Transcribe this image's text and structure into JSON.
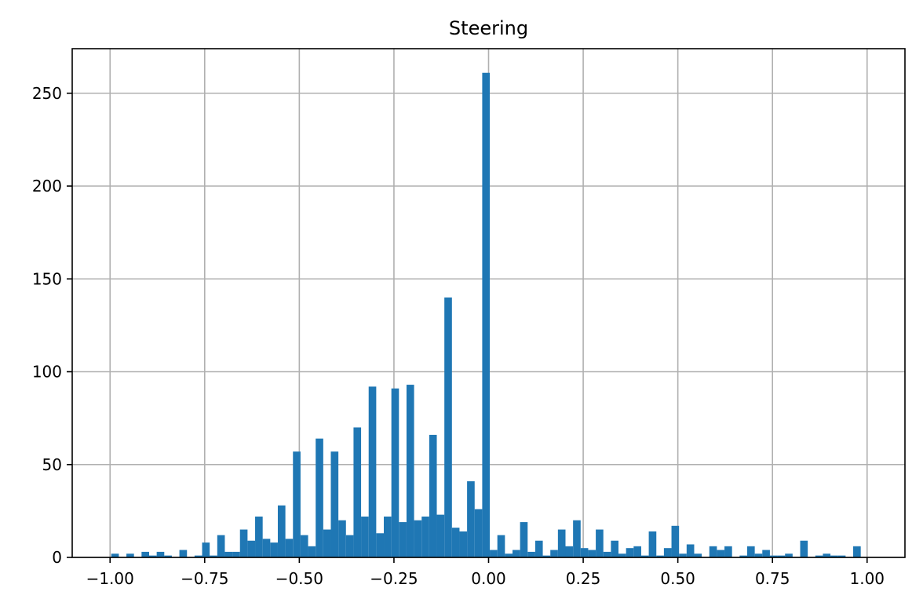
{
  "chart_data": {
    "type": "bar",
    "title": "Steering",
    "xlabel": "",
    "ylabel": "",
    "xlim": [
      -1.1,
      1.1
    ],
    "ylim": [
      0,
      274
    ],
    "grid": true,
    "bar_color": "#1f77b4",
    "grid_color": "#b0b0b0",
    "x_ticks": [
      -1.0,
      -0.75,
      -0.5,
      -0.25,
      0.0,
      0.25,
      0.5,
      0.75,
      1.0
    ],
    "x_tick_labels": [
      "−1.00",
      "−0.75",
      "−0.50",
      "−0.25",
      "0.00",
      "0.25",
      "0.50",
      "0.75",
      "1.00"
    ],
    "y_ticks": [
      0,
      50,
      100,
      150,
      200,
      250
    ],
    "y_tick_labels": [
      "0",
      "50",
      "100",
      "150",
      "200",
      "250"
    ],
    "bin_width": 0.02,
    "bins_start": [
      -0.9968,
      -0.9768,
      -0.9568,
      -0.9368,
      -0.9168,
      -0.8968,
      -0.8768,
      -0.8568,
      -0.8368,
      -0.8168,
      -0.7968,
      -0.7768,
      -0.7568,
      -0.7368,
      -0.7168,
      -0.6968,
      -0.6768,
      -0.6568,
      -0.6368,
      -0.6168,
      -0.5968,
      -0.5768,
      -0.5568,
      -0.5368,
      -0.5168,
      -0.4968,
      -0.4768,
      -0.4568,
      -0.4368,
      -0.4168,
      -0.3968,
      -0.3768,
      -0.3568,
      -0.3368,
      -0.3168,
      -0.2968,
      -0.2768,
      -0.2568,
      -0.2368,
      -0.2168,
      -0.1968,
      -0.1768,
      -0.1568,
      -0.1368,
      -0.1168,
      -0.0968,
      -0.0768,
      -0.0568,
      -0.0368,
      -0.0168,
      0.0032,
      0.0232,
      0.0432,
      0.0632,
      0.0832,
      0.1032,
      0.1232,
      0.1432,
      0.1632,
      0.1832,
      0.2032,
      0.2232,
      0.2432,
      0.2632,
      0.2832,
      0.3032,
      0.3232,
      0.3432,
      0.3632,
      0.3832,
      0.4032,
      0.4232,
      0.4432,
      0.4632,
      0.4832,
      0.5032,
      0.5232,
      0.5432,
      0.5632,
      0.5832,
      0.6032,
      0.6232,
      0.6432,
      0.6632,
      0.6832,
      0.7032,
      0.7232,
      0.7432,
      0.7632,
      0.7832,
      0.8032,
      0.8232,
      0.8432,
      0.8632,
      0.8832,
      0.9032,
      0.9232,
      0.9432,
      0.9632,
      0.9832
    ],
    "values": [
      2,
      0,
      2,
      0,
      3,
      1,
      3,
      1,
      0,
      4,
      0,
      1,
      8,
      1,
      12,
      3,
      3,
      15,
      9,
      22,
      10,
      8,
      28,
      10,
      57,
      12,
      6,
      64,
      15,
      57,
      20,
      12,
      70,
      22,
      92,
      13,
      22,
      91,
      19,
      93,
      20,
      22,
      66,
      23,
      140,
      16,
      14,
      41,
      26,
      261,
      4,
      12,
      2,
      4,
      19,
      3,
      9,
      1,
      4,
      15,
      6,
      20,
      5,
      4,
      15,
      3,
      9,
      2,
      5,
      6,
      1,
      14,
      1,
      5,
      17,
      2,
      7,
      2,
      0,
      6,
      4,
      6,
      0,
      1,
      6,
      2,
      4,
      1,
      1,
      2,
      0,
      9,
      0,
      1,
      2,
      1,
      1,
      0,
      6,
      0
    ]
  }
}
